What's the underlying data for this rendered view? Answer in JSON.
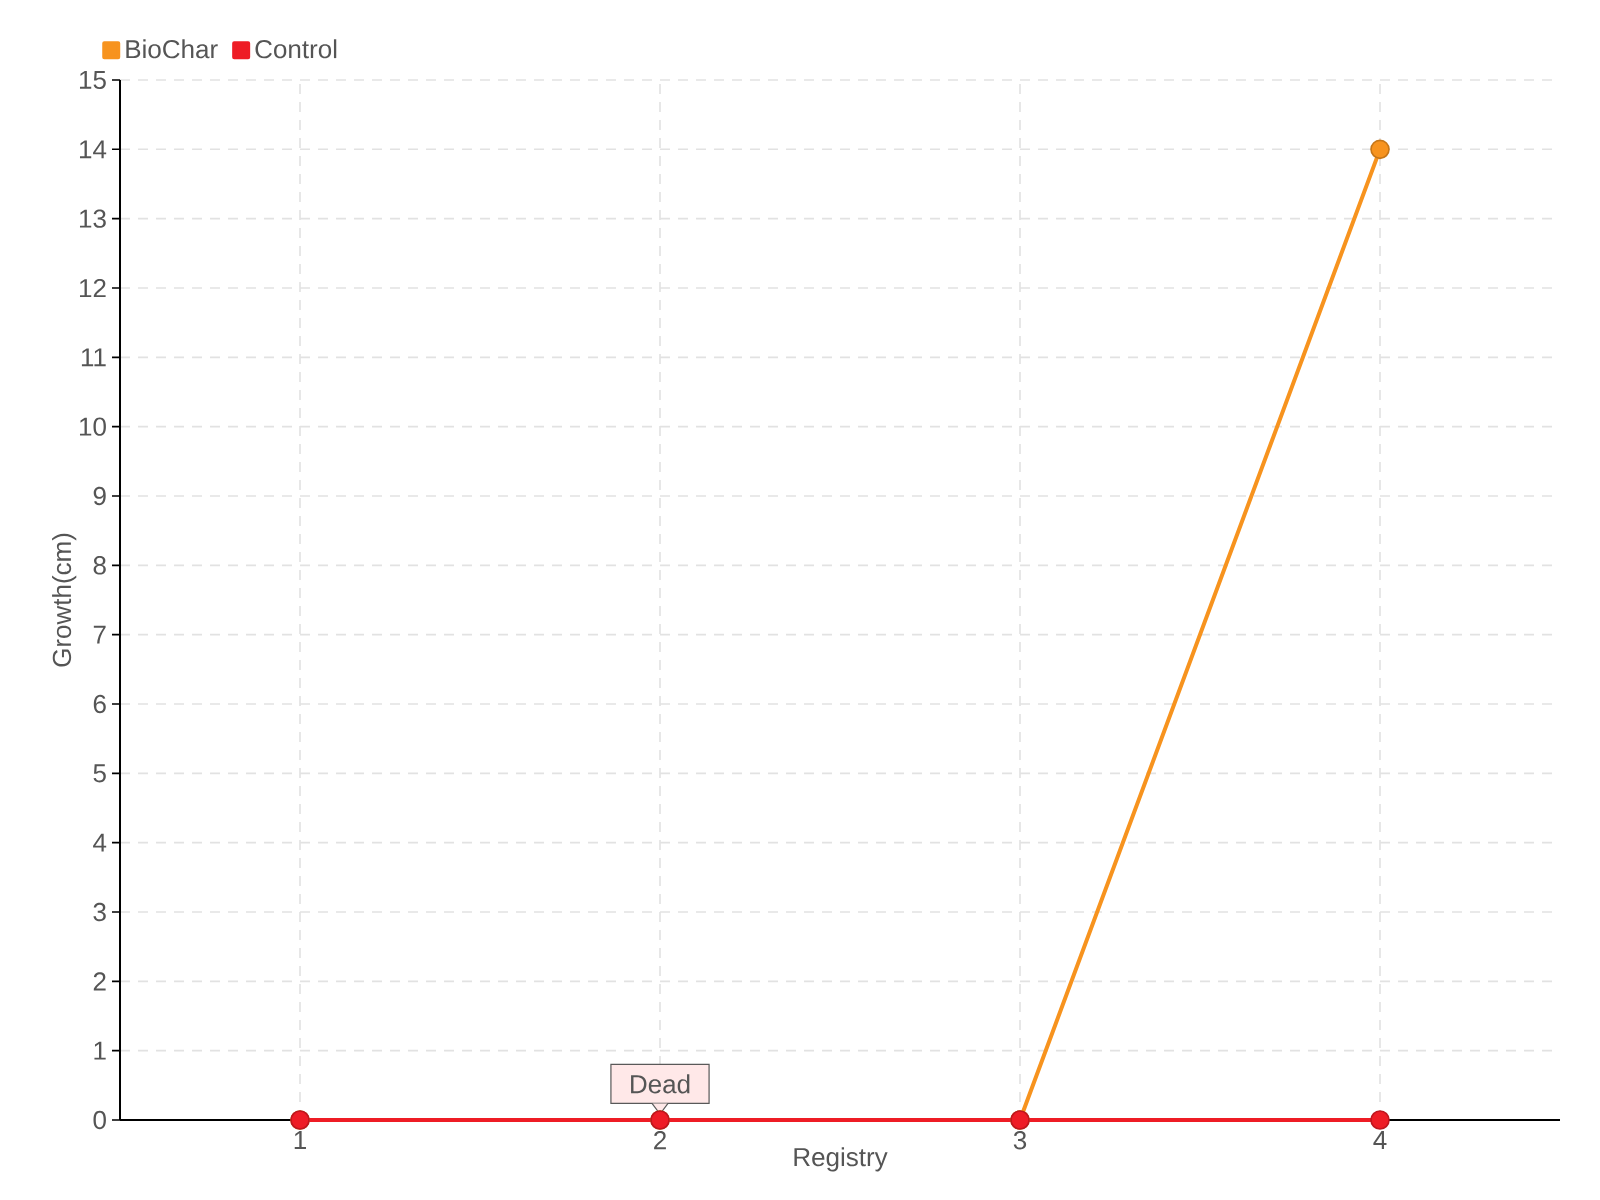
{
  "chart_data": {
    "type": "line",
    "xlabel": "Registry",
    "ylabel": "Growth(cm)",
    "categories": [
      "1",
      "2",
      "3",
      "4"
    ],
    "series": [
      {
        "name": "BioChar",
        "color": "#f7931e",
        "values": [
          0,
          0,
          0,
          14
        ]
      },
      {
        "name": "Control",
        "color": "#ee1c25",
        "values": [
          0,
          0,
          0,
          0
        ]
      }
    ],
    "ylim": [
      0,
      15
    ],
    "yticks": [
      0,
      1,
      2,
      3,
      4,
      5,
      6,
      7,
      8,
      9,
      10,
      11,
      12,
      13,
      14,
      15
    ],
    "grid": true,
    "legend": "top left",
    "marker": "circle",
    "line_style": "solid",
    "annotations": [
      {
        "text": "Dead",
        "x": "2",
        "y": 0
      }
    ]
  }
}
